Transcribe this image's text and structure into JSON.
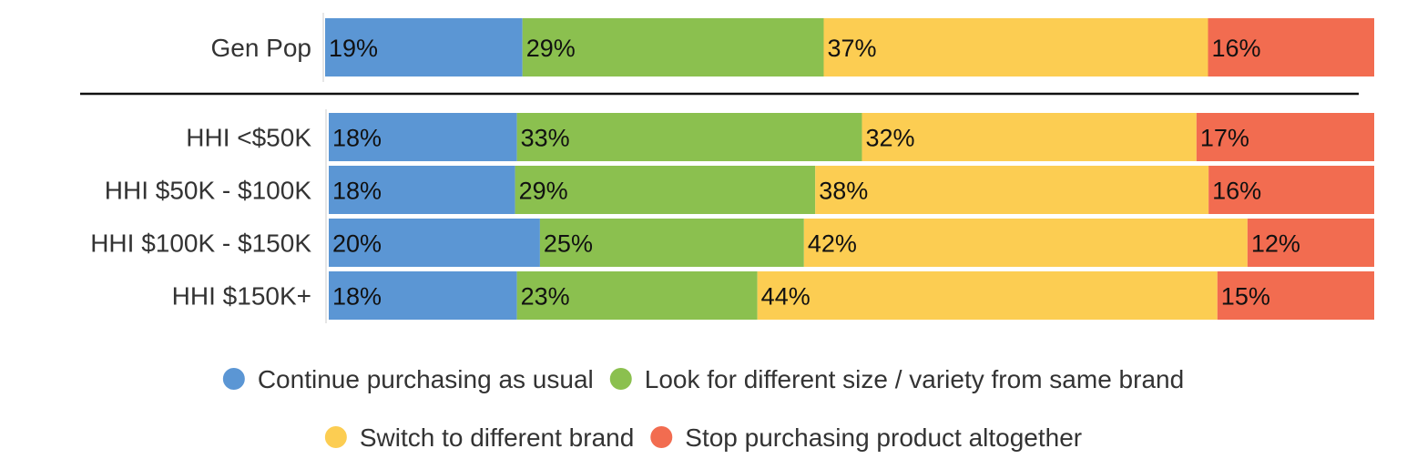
{
  "chart_data": {
    "type": "bar",
    "orientation": "horizontal",
    "stacked": true,
    "categories": [
      "Gen Pop",
      "HHI <$50K",
      "HHI $50K - $100K",
      "HHI $100K - $150K",
      "HHI $150K+"
    ],
    "series": [
      {
        "name": "Continue purchasing as usual",
        "values": [
          19,
          18,
          18,
          20,
          18
        ],
        "color": "#5b96d4"
      },
      {
        "name": "Look for different size / variety from same brand",
        "values": [
          29,
          33,
          29,
          25,
          23
        ],
        "color": "#8bc04f"
      },
      {
        "name": "Switch to different brand",
        "values": [
          37,
          32,
          38,
          42,
          44
        ],
        "color": "#fccd52"
      },
      {
        "name": "Stop purchasing product altogether",
        "values": [
          16,
          17,
          16,
          12,
          15
        ],
        "color": "#f26c50"
      }
    ],
    "value_suffix": "%",
    "legend_position": "bottom",
    "separator_after": "Gen Pop"
  }
}
